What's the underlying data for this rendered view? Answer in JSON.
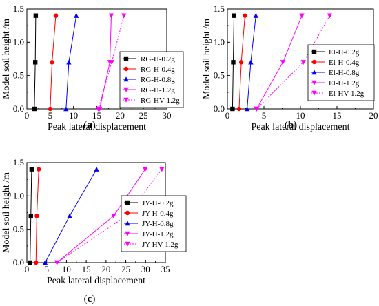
{
  "chart_data": [
    {
      "type": "line",
      "panel_label": "(a)",
      "panel_letter": "a",
      "xlabel": "Peak lateral displacement",
      "ylabel": "Model soil height /m",
      "xlim": [
        0,
        30
      ],
      "ylim": [
        0,
        1.5
      ],
      "xticks": [
        "0",
        "5",
        "10",
        "15",
        "20",
        "25",
        "30"
      ],
      "yticks": [
        "0.0",
        "0.5",
        "1.0",
        "1.5"
      ],
      "x_tick_values": [
        0,
        5,
        10,
        15,
        20,
        25,
        30
      ],
      "y_tick_values": [
        0,
        0.5,
        1.0,
        1.5
      ],
      "heights": [
        0,
        0.7,
        1.4
      ],
      "legend_position": "right",
      "series": [
        {
          "name": "RG-H-0.2g",
          "color": "#000000",
          "marker": "square",
          "dashed": false,
          "x": [
            1.6,
            1.8,
            1.9
          ]
        },
        {
          "name": "RG-H-0.4g",
          "color": "#ff0000",
          "marker": "circle",
          "dashed": false,
          "x": [
            5.0,
            5.4,
            6.2
          ]
        },
        {
          "name": "RG-H-0.8g",
          "color": "#0000ff",
          "marker": "triangle-up",
          "dashed": false,
          "x": [
            8.4,
            9.0,
            10.6
          ]
        },
        {
          "name": "RG-H-1.2g",
          "color": "#ff00ff",
          "marker": "triangle-down",
          "dashed": false,
          "x": [
            15.6,
            17.8,
            18.1
          ]
        },
        {
          "name": "RG-HV-1.2g",
          "color": "#ff00ff",
          "marker": "triangle-down",
          "dashed": true,
          "x": [
            15.3,
            18.2,
            20.8
          ]
        }
      ]
    },
    {
      "type": "line",
      "panel_label": "(b)",
      "panel_letter": "b",
      "xlabel": "Peak lateral displacement",
      "ylabel": "Model soil height /m",
      "xlim": [
        0,
        20
      ],
      "ylim": [
        0,
        1.5
      ],
      "xticks": [
        "0",
        "5",
        "10",
        "15",
        "20"
      ],
      "yticks": [
        "0.0",
        "0.5",
        "1.0",
        "1.5"
      ],
      "x_tick_values": [
        0,
        5,
        10,
        15,
        20
      ],
      "y_tick_values": [
        0,
        0.5,
        1.0,
        1.5
      ],
      "heights": [
        0,
        0.7,
        1.4
      ],
      "legend_position": "right",
      "series": [
        {
          "name": "El-H-0.2g",
          "color": "#000000",
          "marker": "square",
          "dashed": false,
          "x": [
            0.7,
            0.8,
            0.9
          ]
        },
        {
          "name": "El-H-0.4g",
          "color": "#ff0000",
          "marker": "circle",
          "dashed": false,
          "x": [
            1.6,
            1.9,
            2.4
          ]
        },
        {
          "name": "El-H-0.8g",
          "color": "#0000ff",
          "marker": "triangle-up",
          "dashed": false,
          "x": [
            2.7,
            3.2,
            3.9
          ]
        },
        {
          "name": "El-H-1.2g",
          "color": "#ff00ff",
          "marker": "triangle-down",
          "dashed": false,
          "x": [
            4.0,
            7.6,
            10.2
          ]
        },
        {
          "name": "El-HV-1.2g",
          "color": "#ff00ff",
          "marker": "triangle-down",
          "dashed": true,
          "x": [
            4.0,
            10.4,
            14.0
          ]
        }
      ]
    },
    {
      "type": "line",
      "panel_label": "(c)",
      "panel_letter": "c",
      "xlabel": "Peak lateral displacement",
      "ylabel": "Model soil height /m",
      "xlim": [
        0,
        35
      ],
      "ylim": [
        0,
        1.5
      ],
      "xticks": [
        "0",
        "5",
        "10",
        "15",
        "20",
        "25",
        "30",
        "35"
      ],
      "yticks": [
        "0.0",
        "0.5",
        "1.0",
        "1.5"
      ],
      "x_tick_values": [
        0,
        5,
        10,
        15,
        20,
        25,
        30,
        35
      ],
      "y_tick_values": [
        0,
        0.5,
        1.0,
        1.5
      ],
      "heights": [
        0,
        0.7,
        1.4
      ],
      "legend_position": "right",
      "series": [
        {
          "name": "JY-H-0.2g",
          "color": "#000000",
          "marker": "square",
          "dashed": false,
          "x": [
            0.8,
            1.0,
            1.2
          ]
        },
        {
          "name": "JY-H-0.4g",
          "color": "#ff0000",
          "marker": "circle",
          "dashed": false,
          "x": [
            2.3,
            2.5,
            3.0
          ]
        },
        {
          "name": "JY-H-0.8g",
          "color": "#0000ff",
          "marker": "triangle-up",
          "dashed": false,
          "x": [
            4.6,
            10.8,
            17.6
          ]
        },
        {
          "name": "JY-H-1.2g",
          "color": "#ff00ff",
          "marker": "triangle-down",
          "dashed": false,
          "x": [
            7.6,
            21.9,
            29.9
          ]
        },
        {
          "name": "JY-HV-1.2g",
          "color": "#ff00ff",
          "marker": "triangle-down",
          "dashed": true,
          "x": [
            7.6,
            25.1,
            34.1
          ]
        }
      ]
    }
  ]
}
